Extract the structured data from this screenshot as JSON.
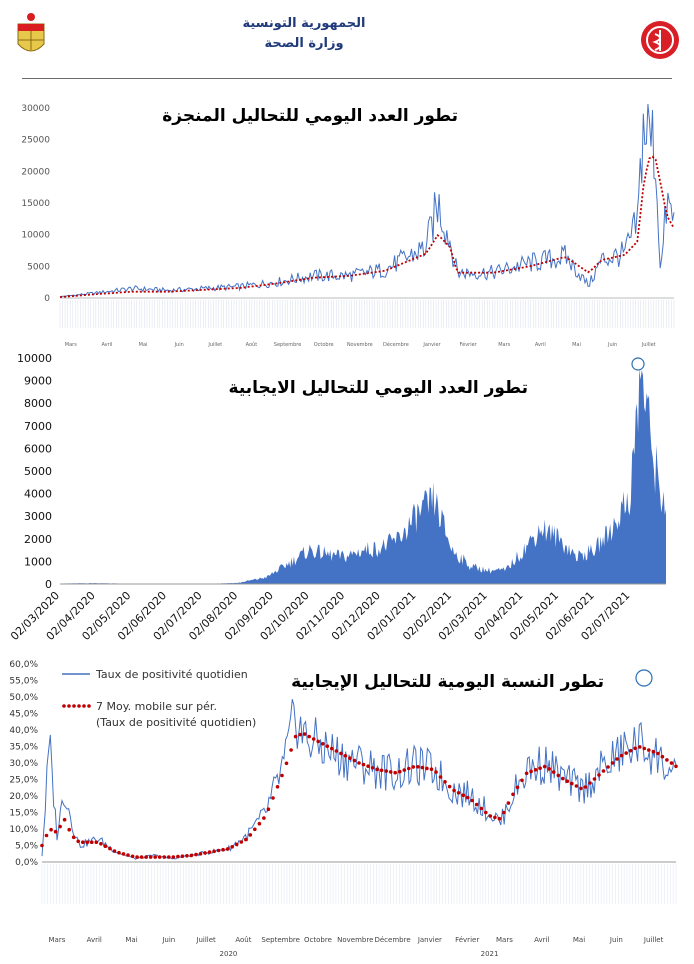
{
  "header": {
    "line1": "الجمهورية التونسية",
    "line2": "وزارة الصحة"
  },
  "chart_data": [
    {
      "type": "line",
      "title": "تطور العدد اليومي للتحاليل المنجزة",
      "ylim": [
        0,
        30000
      ],
      "yticks": [
        "30000",
        "25000",
        "20000",
        "15000",
        "10000",
        "5000",
        "0"
      ],
      "x_month_labels": [
        "Mars",
        "Avril",
        "Mai",
        "Juin",
        "Juillet",
        "Août",
        "Septembre",
        "Octobre",
        "Novembre",
        "Décembre",
        "Janvier",
        "Février",
        "Mars",
        "Avril",
        "Mai",
        "Juin",
        "Juillet"
      ],
      "x_year_labels": [
        "2020",
        "2021"
      ],
      "series": [
        {
          "name": "daily",
          "color": "#4472c4",
          "x": [
            "2020-03",
            "2020-04",
            "2020-05",
            "2020-06",
            "2020-07",
            "2020-08",
            "2020-09",
            "2020-10",
            "2020-11",
            "2020-12",
            "2021-01-05",
            "2021-01-15",
            "2021-01-25",
            "2021-02",
            "2021-03",
            "2021-04",
            "2021-05",
            "2021-05-20",
            "2021-06",
            "2021-06-20",
            "2021-07-01",
            "2021-07-05",
            "2021-07-10",
            "2021-07-15",
            "2021-07-20",
            "2021-07-25",
            "2021-07-31"
          ],
          "values": [
            200,
            800,
            1500,
            1200,
            1500,
            1800,
            2500,
            3500,
            3500,
            4500,
            8000,
            15000,
            9000,
            4000,
            4000,
            5500,
            6500,
            2000,
            6000,
            7000,
            12000,
            27000,
            26000,
            24000,
            4000,
            15000,
            12000
          ]
        },
        {
          "name": "7-day average",
          "color": "#c00000",
          "x": [
            "2020-03",
            "2020-04",
            "2020-05",
            "2020-06",
            "2020-07",
            "2020-08",
            "2020-09",
            "2020-10",
            "2020-11",
            "2020-12",
            "2021-01-05",
            "2021-01-15",
            "2021-01-25",
            "2021-02",
            "2021-03",
            "2021-04",
            "2021-05",
            "2021-05-20",
            "2021-06",
            "2021-06-20",
            "2021-07-01",
            "2021-07-05",
            "2021-07-10",
            "2021-07-15",
            "2021-07-20",
            "2021-07-25",
            "2021-07-31"
          ],
          "values": [
            150,
            600,
            1000,
            1000,
            1300,
            1600,
            2300,
            3200,
            3500,
            4300,
            7000,
            10000,
            8000,
            4000,
            4000,
            5000,
            6500,
            4000,
            6000,
            6800,
            9000,
            17000,
            22000,
            22500,
            18000,
            13000,
            11000
          ]
        }
      ]
    },
    {
      "type": "area",
      "title": "تطور العدد اليومي للتحاليل الايجابية",
      "ylim": [
        0,
        10000
      ],
      "yticks": [
        "10000",
        "9000",
        "8000",
        "7000",
        "6000",
        "5000",
        "4000",
        "3000",
        "2000",
        "1000",
        "0"
      ],
      "x_tick_labels": [
        "02/03/2020",
        "02/04/2020",
        "02/05/2020",
        "02/06/2020",
        "02/07/2020",
        "02/08/2020",
        "02/09/2020",
        "02/10/2020",
        "02/11/2020",
        "02/12/2020",
        "02/01/2021",
        "02/02/2021",
        "02/03/2021",
        "02/04/2021",
        "02/05/2021",
        "02/06/2021",
        "02/07/2021"
      ],
      "series": [
        {
          "name": "positives",
          "color": "#4472c4",
          "x_month_index": [
            0,
            1,
            2,
            3,
            4,
            5,
            5.8,
            6.5,
            7,
            7.5,
            8,
            8.5,
            9,
            9.5,
            10,
            10.5,
            11,
            11.5,
            12,
            12.5,
            13,
            13.5,
            14,
            14.5,
            15,
            15.5,
            16,
            16.3,
            16.6,
            16.9
          ],
          "values": [
            20,
            40,
            10,
            5,
            10,
            50,
            300,
            1000,
            1500,
            1300,
            1200,
            1500,
            1600,
            2000,
            3000,
            3700,
            1500,
            800,
            600,
            600,
            1500,
            2500,
            2000,
            1200,
            1500,
            2500,
            4000,
            9500,
            6000,
            3700
          ]
        }
      ]
    },
    {
      "type": "line",
      "title": "تطور النسبة اليومية للتحاليل الإيجابية",
      "ylim": [
        0,
        60
      ],
      "yticks": [
        "60,0%",
        "55,0%",
        "50,0%",
        "45,0%",
        "40,0%",
        "35,0%",
        "30,0%",
        "25,0%",
        "20,0%",
        "15,0%",
        "10,0%",
        "5,0%",
        "0,0%"
      ],
      "x_month_labels": [
        "Mars",
        "Avril",
        "Mai",
        "Juin",
        "Juillet",
        "Août",
        "Septembre",
        "Octobre",
        "Novembre",
        "Décembre",
        "Janvier",
        "Février",
        "Mars",
        "Avril",
        "Mai",
        "Juin",
        "Juillet"
      ],
      "x_year_labels": [
        "2020",
        "2021"
      ],
      "legend": [
        {
          "label": "Taux de positivité quotidien",
          "style": "line",
          "color": "#4472c4"
        },
        {
          "label": "7 Moy. mobile sur pér. (Taux de positivité quotidien)",
          "style": "dotted",
          "color": "#c00000"
        }
      ],
      "series": [
        {
          "name": "Taux de positivité quotidien",
          "color": "#4472c4",
          "x_month_index": [
            0,
            0.2,
            0.4,
            0.6,
            0.8,
            1,
            1.5,
            2,
            2.5,
            3,
            3.5,
            4,
            4.5,
            5,
            5.5,
            6,
            6.5,
            6.8,
            7,
            7.5,
            8,
            8.5,
            9,
            9.5,
            10,
            10.5,
            11,
            11.5,
            12,
            12.3,
            12.6,
            13,
            13.5,
            14,
            14.5,
            15,
            15.5,
            16,
            16.5,
            17
          ],
          "values": [
            2,
            36,
            8,
            22,
            12,
            5,
            7,
            3,
            1,
            2,
            1,
            2,
            3,
            4,
            8,
            15,
            30,
            45,
            38,
            35,
            32,
            30,
            28,
            27,
            29,
            28,
            22,
            20,
            15,
            12,
            20,
            28,
            30,
            25,
            22,
            28,
            33,
            36,
            32,
            25
          ]
        },
        {
          "name": "7 Moy. mobile sur pér. (Taux de positivité quotidien)",
          "color": "#c00000",
          "x_month_index": [
            0,
            0.2,
            0.4,
            0.6,
            0.8,
            1,
            1.5,
            2,
            2.5,
            3,
            3.5,
            4,
            4.5,
            5,
            5.5,
            6,
            6.5,
            6.8,
            7,
            7.5,
            8,
            8.5,
            9,
            9.5,
            10,
            10.5,
            11,
            11.5,
            12,
            12.3,
            12.6,
            13,
            13.5,
            14,
            14.5,
            15,
            15.5,
            16,
            16.5,
            17
          ],
          "values": [
            5,
            10,
            9,
            13,
            8,
            6,
            6,
            3,
            1.5,
            1.5,
            1.5,
            2,
            3,
            4,
            7,
            14,
            28,
            38,
            39,
            36,
            33,
            30,
            28,
            27,
            29,
            28,
            22,
            19,
            14,
            13,
            20,
            27,
            29,
            25,
            22,
            27,
            32,
            35,
            33,
            29
          ]
        }
      ]
    }
  ]
}
